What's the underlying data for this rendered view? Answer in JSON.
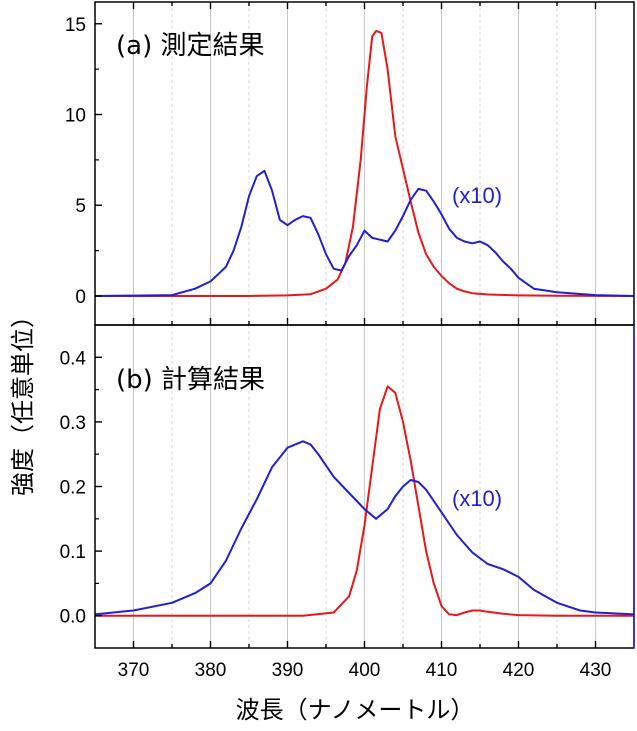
{
  "chart_data": {
    "type": "line",
    "xlabel": "波長（ナノメートル）",
    "ylabel": "強度（任意単位）",
    "xlim": [
      365,
      435
    ],
    "xticks": [
      370,
      380,
      390,
      400,
      410,
      420,
      430
    ],
    "grid": "vertical",
    "panels": [
      {
        "title": "(a) 測定結果",
        "ylim": [
          -1.6,
          16.2
        ],
        "yticks": [
          0,
          5,
          10,
          15
        ],
        "ytick_labels": [
          "0",
          "5",
          "10",
          "15"
        ],
        "annotation": "(x10)",
        "series": [
          {
            "color": "#e81818",
            "x": [
              365,
              385,
              390,
              393,
              395,
              396.5,
              397.5,
              398.5,
              399.5,
              400.3,
              401,
              401.5,
              402.2,
              403,
              404,
              405,
              406,
              407,
              408,
              409,
              410,
              411,
              412,
              413,
              414,
              416,
              420,
              425,
              435
            ],
            "y": [
              0,
              0,
              0.03,
              0.1,
              0.4,
              0.9,
              1.8,
              3.8,
              7.5,
              11.5,
              14.3,
              14.6,
              14.5,
              12.5,
              8.8,
              7.0,
              5.2,
              3.5,
              2.3,
              1.6,
              1.1,
              0.7,
              0.4,
              0.25,
              0.15,
              0.08,
              0.03,
              0.01,
              0
            ]
          },
          {
            "color": "#1f1fd6",
            "x": [
              365,
              370,
              375,
              378,
              380,
              381,
              382,
              383,
              384,
              385,
              386,
              387,
              388,
              389,
              390,
              391,
              392,
              393,
              394,
              395,
              396,
              397,
              398,
              399,
              400,
              401,
              402,
              403,
              404,
              405,
              406,
              407,
              408,
              409,
              410,
              411,
              412,
              413,
              414,
              415,
              416,
              417,
              418,
              419,
              420,
              422,
              425,
              430,
              435
            ],
            "y": [
              0,
              0.02,
              0.05,
              0.4,
              0.8,
              1.2,
              1.6,
              2.5,
              3.8,
              5.5,
              6.6,
              6.9,
              5.8,
              4.2,
              3.9,
              4.2,
              4.4,
              4.3,
              3.4,
              2.3,
              1.5,
              1.4,
              2.2,
              2.8,
              3.6,
              3.2,
              3.1,
              3.0,
              3.6,
              4.4,
              5.3,
              5.9,
              5.8,
              5.2,
              4.5,
              3.7,
              3.2,
              3.0,
              2.9,
              3.0,
              2.8,
              2.4,
              1.9,
              1.5,
              1.0,
              0.4,
              0.2,
              0.05,
              0
            ]
          }
        ]
      },
      {
        "title": "(b) 計算結果",
        "ylim": [
          -0.05,
          0.45
        ],
        "yticks": [
          0,
          0.1,
          0.2,
          0.3,
          0.4
        ],
        "ytick_labels": [
          "0.0",
          "0.1",
          "0.2",
          "0.3",
          "0.4"
        ],
        "annotation": "(x10)",
        "series": [
          {
            "color": "#e81818",
            "x": [
              365,
              392,
              396,
              398,
              399,
              400,
              401,
              402,
              403,
              404,
              405,
              406,
              407,
              408,
              409,
              410,
              411,
              412,
              413,
              414,
              415,
              416,
              418,
              420,
              425,
              435
            ],
            "y": [
              0,
              0,
              0.005,
              0.03,
              0.07,
              0.14,
              0.23,
              0.32,
              0.355,
              0.345,
              0.3,
              0.24,
              0.17,
              0.1,
              0.05,
              0.015,
              0.002,
              0.001,
              0.005,
              0.008,
              0.008,
              0.006,
              0.003,
              0.001,
              0,
              0
            ]
          },
          {
            "color": "#1f1fd6",
            "x": [
              365,
              370,
              375,
              378,
              380,
              382,
              384,
              386,
              388,
              390,
              392,
              393,
              394,
              396,
              398,
              400,
              401.5,
              403,
              404,
              405,
              406,
              407,
              408,
              410,
              412,
              414,
              416,
              418,
              420,
              422,
              425,
              428,
              430,
              435
            ],
            "y": [
              0.002,
              0.008,
              0.02,
              0.035,
              0.05,
              0.085,
              0.135,
              0.18,
              0.23,
              0.26,
              0.27,
              0.265,
              0.25,
              0.215,
              0.19,
              0.165,
              0.15,
              0.165,
              0.185,
              0.2,
              0.21,
              0.207,
              0.195,
              0.16,
              0.125,
              0.098,
              0.08,
              0.072,
              0.06,
              0.04,
              0.02,
              0.008,
              0.005,
              0.002
            ]
          }
        ]
      }
    ]
  }
}
